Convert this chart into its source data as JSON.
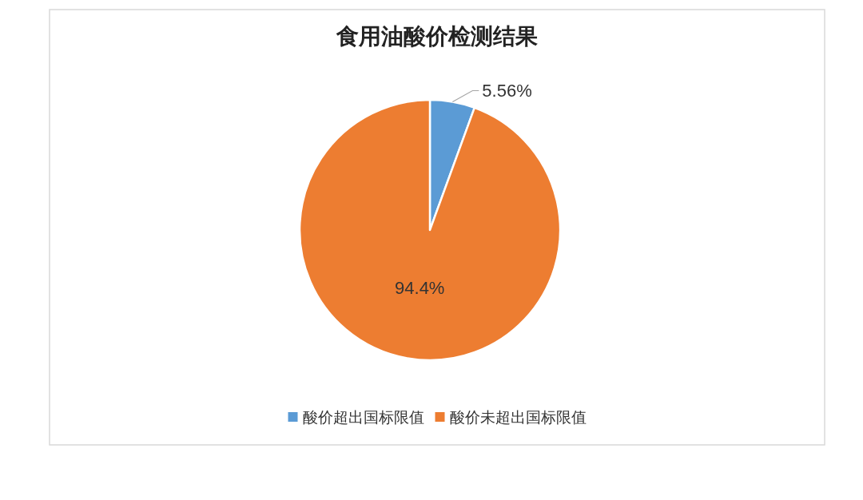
{
  "chart_data": {
    "type": "pie",
    "title": "食用油酸价检测结果",
    "categories": [
      "酸价超出国标限值",
      "酸价未超出国标限值"
    ],
    "values": [
      5.56,
      94.4
    ],
    "value_labels": [
      "5.56%",
      "94.4%"
    ],
    "colors": [
      "#5b9bd5",
      "#ed7d31"
    ],
    "legend": "bottom"
  }
}
